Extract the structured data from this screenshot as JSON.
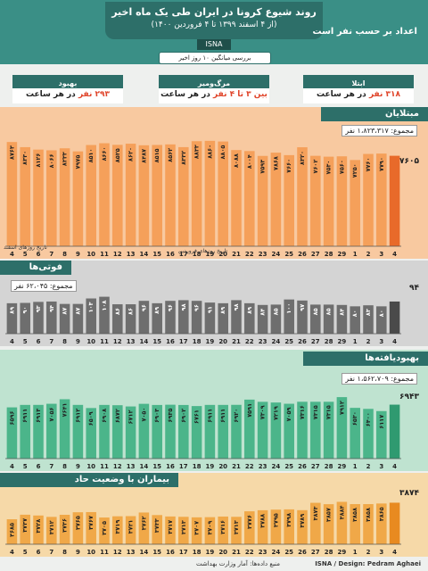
{
  "header": {
    "title": "روند شیوع کرونا در ایران طی یک ماه اخیر",
    "subtitle": "(از ۴ اسفند ۱۳۹۹ تا ۴ فروردین ۱۴۰۰)",
    "agency": "ISNA",
    "unit_note": "اعداد بر حسب نفر است",
    "avg_title": "بررسی میانگین ۱۰ روز اخیر"
  },
  "stats": [
    {
      "label": "بهبود",
      "value_num": "۲۹۳ نفر",
      "value_rest": " در هر ساعت"
    },
    {
      "label": "مرگ‌ومیر",
      "value_num": "بین ۳ تا ۴ نفر",
      "value_rest": " در هر ساعت"
    },
    {
      "label": "ابتلا",
      "value_num": "۳۱۸ نفر",
      "value_rest": " در هر ساعت"
    }
  ],
  "sections": {
    "infected": {
      "title": "مبتلایان",
      "total": "مجموع: ۱،۸۲۳،۳۱۷ نفر",
      "last_label": "۷۶۰۵"
    },
    "deaths": {
      "title": "فوتی‌ها",
      "total": "مجموع: ۶۲،۰۴۵ نفر",
      "last_label": "۹۴"
    },
    "recovered": {
      "title": "بهبودیافته‌ها",
      "total": "مجموع: ۱،۵۶۲،۷۰۹ نفر",
      "last_label": "۶۹۴۳"
    },
    "critical": {
      "title": "بیماران با وضعیت حاد",
      "last_label": "۳۸۷۴"
    }
  },
  "axis_notes": {
    "esfand": "تاریخ روزهای اسفند",
    "farvardin": "تاریخ روزهای فروردین"
  },
  "footer": {
    "credit": "ISNA / Design: Pedram Aghaei",
    "source": "منبع داده‌ها: آمار وزارت بهداشت"
  },
  "colors": {
    "header": "#3a8f86",
    "infected": "#f5a05a",
    "deaths": "#6e6e6e",
    "recovered": "#4bb58a",
    "critical": "#f0a848"
  },
  "chart_data": [
    {
      "type": "bar",
      "title": "مبتلایان",
      "categories": [
        "4",
        "5",
        "6",
        "7",
        "8",
        "9",
        "10",
        "11",
        "12",
        "13",
        "14",
        "15",
        "16",
        "17",
        "18",
        "19",
        "20",
        "21",
        "22",
        "23",
        "24",
        "25",
        "26",
        "27",
        "28",
        "29",
        "1",
        "2",
        "3",
        "4"
      ],
      "values": [
        8763,
        8330,
        8126,
        8066,
        8233,
        7975,
        8510,
        8660,
        8525,
        8620,
        8487,
        8515,
        8562,
        8332,
        8833,
        8860,
        8805,
        8088,
        8004,
        7593,
        7868,
        7660,
        8320,
        7602,
        7530,
        7560,
        7250,
        7760,
        7790,
        7605
      ],
      "bar_labels": [
        "۸۷۶۳",
        "۸۳۳۰",
        "۸۱۲۶",
        "۸۰۶۶",
        "۸۲۳۳",
        "۷۹۷۵",
        "۸۵۱۰",
        "۸۶۶۰",
        "۸۵۲۵",
        "۸۶۲۰",
        "۸۴۸۷",
        "۸۵۱۵",
        "۸۵۶۲",
        "۸۳۳۲",
        "۸۸۳۳",
        "۸۸۶۰",
        "۸۸۰۵",
        "۸۰۸۸",
        "۸۰۰۴",
        "۷۵۹۳",
        "۷۸۶۸",
        "۷۶۶۰",
        "۸۳۲۰",
        "۷۶۰۲",
        "۷۵۳۰",
        "۷۵۶۰",
        "۷۲۵۰",
        "۷۷۶۰",
        "۷۷۹۰",
        ""
      ],
      "ylim": [
        0,
        9000
      ]
    },
    {
      "type": "bar",
      "title": "فوتی‌ها",
      "categories": [
        "4",
        "5",
        "6",
        "7",
        "8",
        "9",
        "10",
        "11",
        "12",
        "13",
        "14",
        "15",
        "16",
        "17",
        "18",
        "19",
        "20",
        "21",
        "22",
        "23",
        "24",
        "25",
        "26",
        "27",
        "28",
        "29",
        "1",
        "2",
        "3",
        "4"
      ],
      "values": [
        89,
        90,
        93,
        94,
        87,
        87,
        103,
        108,
        86,
        86,
        96,
        89,
        96,
        98,
        96,
        91,
        89,
        98,
        89,
        84,
        85,
        100,
        97,
        85,
        85,
        84,
        80,
        83,
        80,
        94
      ],
      "bar_labels": [
        "۸۹",
        "۹۰",
        "۹۳",
        "۹۴",
        "۸۷",
        "۸۷",
        "۱۰۳",
        "۱۰۸",
        "۸۶",
        "۸۶",
        "۹۶",
        "۸۹",
        "۹۶",
        "۹۸",
        "۹۶",
        "۹۱",
        "۸۹",
        "۹۸",
        "۸۹",
        "۸۴",
        "۸۵",
        "۱۰۰",
        "۹۷",
        "۸۵",
        "۸۵",
        "۸۴",
        "۸۰",
        "۸۳",
        "۸۰",
        ""
      ],
      "ylim": [
        0,
        120
      ]
    },
    {
      "type": "bar",
      "title": "بهبودیافته‌ها",
      "categories": [
        "4",
        "5",
        "6",
        "7",
        "8",
        "9",
        "10",
        "11",
        "12",
        "13",
        "14",
        "15",
        "16",
        "17",
        "18",
        "19",
        "20",
        "21",
        "22",
        "23",
        "24",
        "25",
        "26",
        "27",
        "28",
        "29",
        "1",
        "2",
        "3",
        "4"
      ],
      "values": [
        6596,
        6911,
        6913,
        7056,
        7641,
        6912,
        6509,
        6908,
        6872,
        6712,
        7050,
        6903,
        6935,
        6902,
        6761,
        6911,
        6911,
        6920,
        7591,
        7309,
        7219,
        7059,
        7316,
        7315,
        7315,
        7912,
        6530,
        6400,
        6117,
        6943
      ],
      "bar_labels": [
        "۶۵۹۶",
        "۶۹۱۱",
        "۶۹۱۳",
        "۷۰۵۶",
        "۷۶۴۱",
        "۶۹۱۲",
        "۶۵۰۹",
        "۶۹۰۸",
        "۶۸۷۲",
        "۶۷۱۲",
        "۷۰۵۰",
        "۶۹۰۳",
        "۶۹۳۵",
        "۶۹۰۲",
        "۶۷۶۱",
        "۶۹۱۱",
        "۶۹۱۱",
        "۶۹۲۰",
        "۷۵۹۱",
        "۷۳۰۹",
        "۷۲۱۹",
        "۷۰۵۹",
        "۷۳۱۶",
        "۷۳۱۵",
        "۷۳۱۵",
        "۷۹۱۲",
        "۶۵۳۰",
        "۶۴۰۰",
        "۶۱۱۷",
        ""
      ],
      "ylim": [
        0,
        8500
      ]
    },
    {
      "type": "bar",
      "title": "بیماران با وضعیت حاد",
      "categories": [
        "4",
        "5",
        "6",
        "7",
        "8",
        "9",
        "10",
        "11",
        "12",
        "13",
        "14",
        "15",
        "16",
        "17",
        "18",
        "19",
        "20",
        "21",
        "22",
        "23",
        "24",
        "25",
        "26",
        "27",
        "28",
        "29",
        "1",
        "2",
        "3",
        "4"
      ],
      "values": [
        3685,
        3737,
        3728,
        3712,
        3736,
        3765,
        3767,
        3705,
        3719,
        3721,
        3762,
        3733,
        3717,
        3713,
        3707,
        3709,
        3716,
        3713,
        3776,
        3788,
        3795,
        3798,
        3789,
        3873,
        3857,
        3884,
        3858,
        3858,
        3865,
        3874
      ],
      "bar_labels": [
        "۳۶۸۵",
        "۳۷۳۷",
        "۳۷۲۸",
        "۳۷۱۲",
        "۳۷۳۶",
        "۳۷۶۵",
        "۳۷۶۷",
        "۳۷۰۵",
        "۳۷۱۹",
        "۳۷۲۱",
        "۳۷۶۲",
        "۳۷۳۳",
        "۳۷۱۷",
        "۳۷۱۳",
        "۳۷۰۷",
        "۳۷۰۹",
        "۳۷۱۶",
        "۳۷۱۳",
        "۳۷۷۶",
        "۳۷۸۸",
        "۳۷۹۵",
        "۳۷۹۸",
        "۳۷۸۹",
        "۳۸۷۳",
        "۳۸۵۷",
        "۳۸۸۴",
        "۳۸۵۸",
        "۳۸۵۸",
        "۳۸۶۵",
        ""
      ],
      "ylim": [
        3400,
        3950
      ]
    }
  ]
}
